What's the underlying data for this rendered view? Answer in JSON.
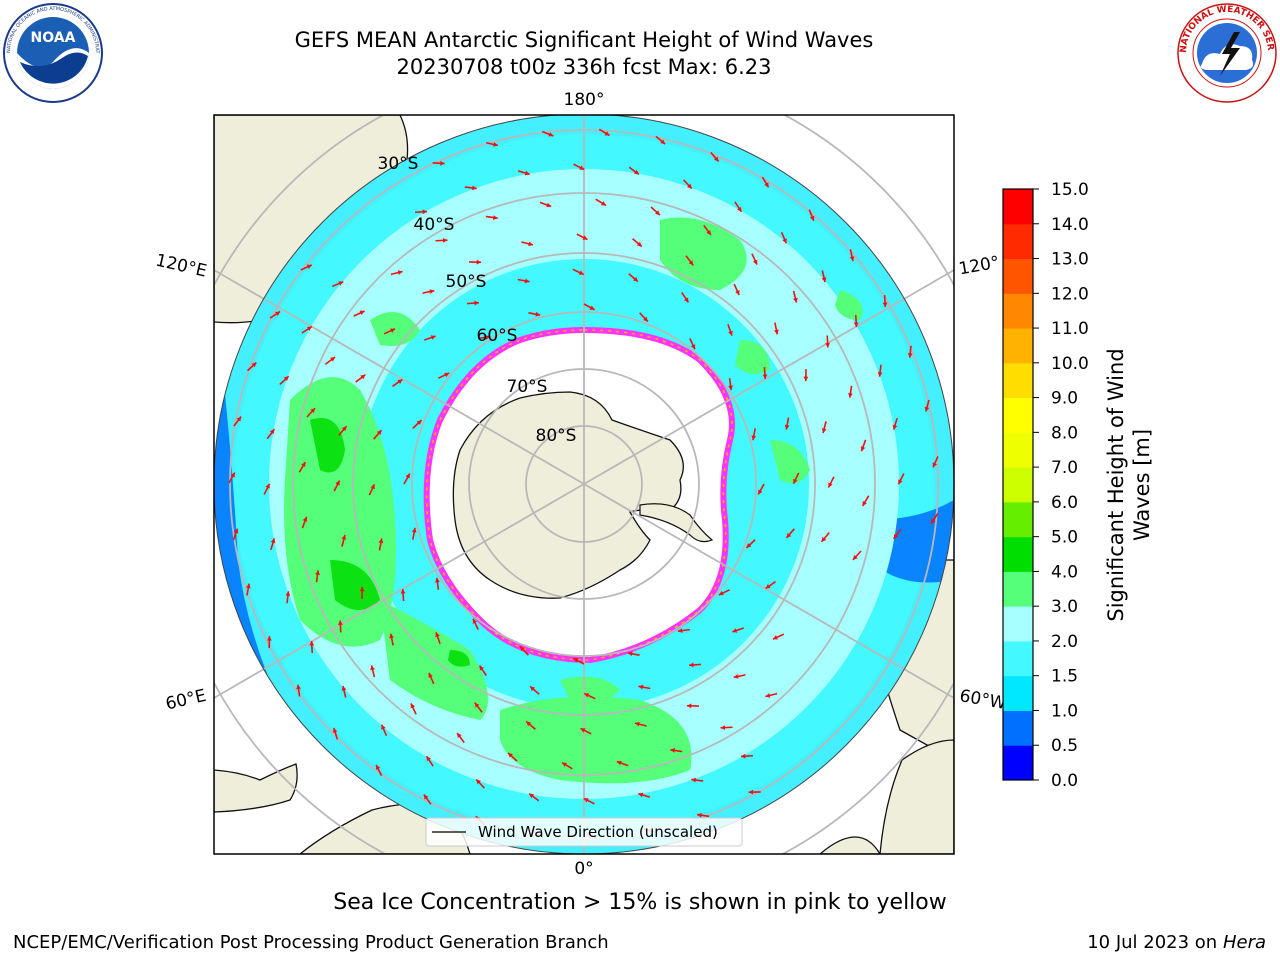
{
  "header": {
    "title_line1": "GEFS MEAN Antarctic Significant Height of Wind Waves",
    "title_line2": "20230708 t00z 336h fcst   Max: 6.23"
  },
  "logos": {
    "left": {
      "icon": "noaa-logo",
      "text": "NOAA",
      "ring_text": "NATIONAL OCEANIC AND ATMOSPHERIC ADMINISTRATION · U.S. DEPARTMENT OF COMMERCE"
    },
    "right": {
      "icon": "nws-logo",
      "ring_text": "NATIONAL WEATHER SERVICE"
    }
  },
  "map": {
    "longitude_labels": {
      "top": "180°",
      "upper_left": "120°E",
      "upper_right": "120°",
      "lower_left": "60°E",
      "lower_right": "60°W",
      "bottom": "0°"
    },
    "latitude_labels": [
      "30°S",
      "40°S",
      "50°S",
      "60°S",
      "70°S",
      "80°S"
    ],
    "legend_label": "Wind Wave Direction (unscaled)",
    "colors": {
      "land": "#efeedb",
      "ice_edge": "#ff33ff",
      "arrow": "#ee1111",
      "graticule": "#b8b8b8"
    }
  },
  "colorbar": {
    "label": "Significant Height of Wind Waves [m]",
    "label_line1": "Significant Height of Wind",
    "label_line2": "Waves [m]",
    "ticks": [
      "0.0",
      "0.5",
      "1.0",
      "1.5",
      "2.0",
      "3.0",
      "4.0",
      "5.0",
      "6.0",
      "7.0",
      "8.0",
      "9.0",
      "10.0",
      "11.0",
      "12.0",
      "13.0",
      "14.0",
      "15.0"
    ],
    "colors": [
      "#0000ff",
      "#0070ff",
      "#00e8ff",
      "#44f8ff",
      "#a8ffff",
      "#55ff7a",
      "#00dd00",
      "#66ee00",
      "#ccff00",
      "#eeff00",
      "#ffff00",
      "#ffdd00",
      "#ffb300",
      "#ff8800",
      "#ff5500",
      "#ff2a00",
      "#ff0000"
    ]
  },
  "footer": {
    "note": "Sea Ice Concentration > 15% is shown in pink to yellow",
    "left_credit": "NCEP/EMC/Verification Post Processing Product Generation Branch",
    "right_date": "10 Jul 2023 on",
    "right_host": "Hera"
  }
}
